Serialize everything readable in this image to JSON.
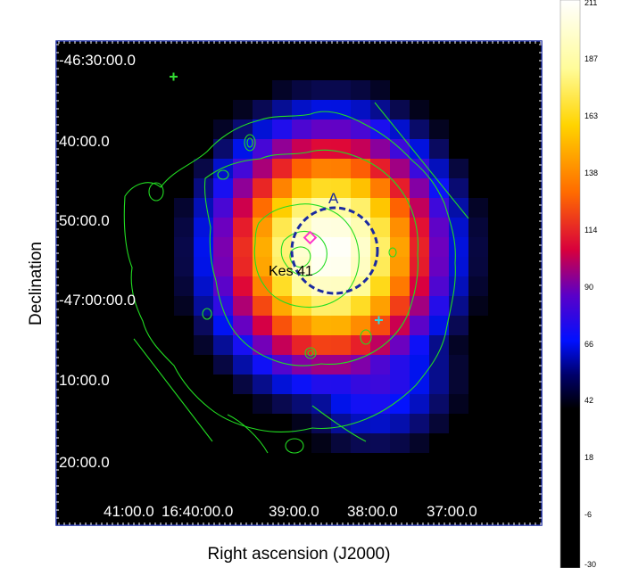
{
  "chart_data": {
    "type": "heatmap",
    "xlabel": "Right ascension  (J2000)",
    "ylabel": "Declination",
    "x_ticks": [
      "41:00.0",
      "16:40:00.0",
      "39:00.0",
      "38:00.0",
      "37:00.0"
    ],
    "y_ticks": [
      "-46:30:00.0",
      "40:00.0",
      "50:00.0",
      "-47:00:00.0",
      "10:00.0",
      "20:00.0"
    ],
    "colorbar": {
      "ticks": [
        "211",
        "187",
        "163",
        "138",
        "114",
        "90",
        "66",
        "42",
        "18",
        "-6",
        "-30"
      ],
      "range": [
        -30,
        211
      ]
    },
    "annotations": {
      "source_label": "Kes 41",
      "region_label": "A"
    },
    "colors": {
      "contour": "#22dd22",
      "region_circle": "#1a2aa0",
      "diamond": "#ff33cc",
      "cross_green": "#33dd33",
      "cross_cyan": "#33dddd",
      "frame": "#1a2aa0"
    }
  }
}
